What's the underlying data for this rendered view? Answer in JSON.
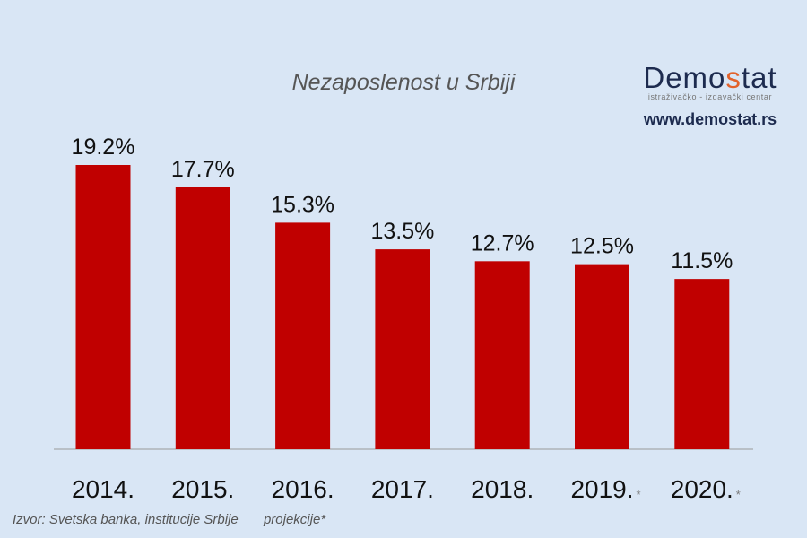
{
  "chart_data": {
    "type": "bar",
    "title": "Nezaposlenost u Srbiji",
    "categories": [
      "2014.",
      "2015.",
      "2016.",
      "2017.",
      "2018.",
      "2019.",
      "2020."
    ],
    "category_markers": [
      "",
      "",
      "",
      "",
      "",
      "*",
      "*"
    ],
    "values": [
      19.2,
      17.7,
      15.3,
      13.5,
      12.7,
      12.5,
      11.5
    ],
    "data_labels": [
      "19.2%",
      "17.7%",
      "15.3%",
      "13.5%",
      "12.7%",
      "12.5%",
      "11.5%"
    ],
    "xlabel": "",
    "ylabel": "",
    "ylim": [
      0,
      19.2
    ],
    "grid": false,
    "bar_color": "#c00000",
    "background": "#d9e6f5"
  },
  "logo": {
    "word_a": "Demo",
    "word_s": "s",
    "word_b": "tat",
    "subtitle": "istraživačko - izdavački  centar",
    "url": "www.demostat.rs"
  },
  "footer": {
    "source": "Izvor: Svetska banka, institucije Srbije",
    "note": "projekcije*"
  }
}
